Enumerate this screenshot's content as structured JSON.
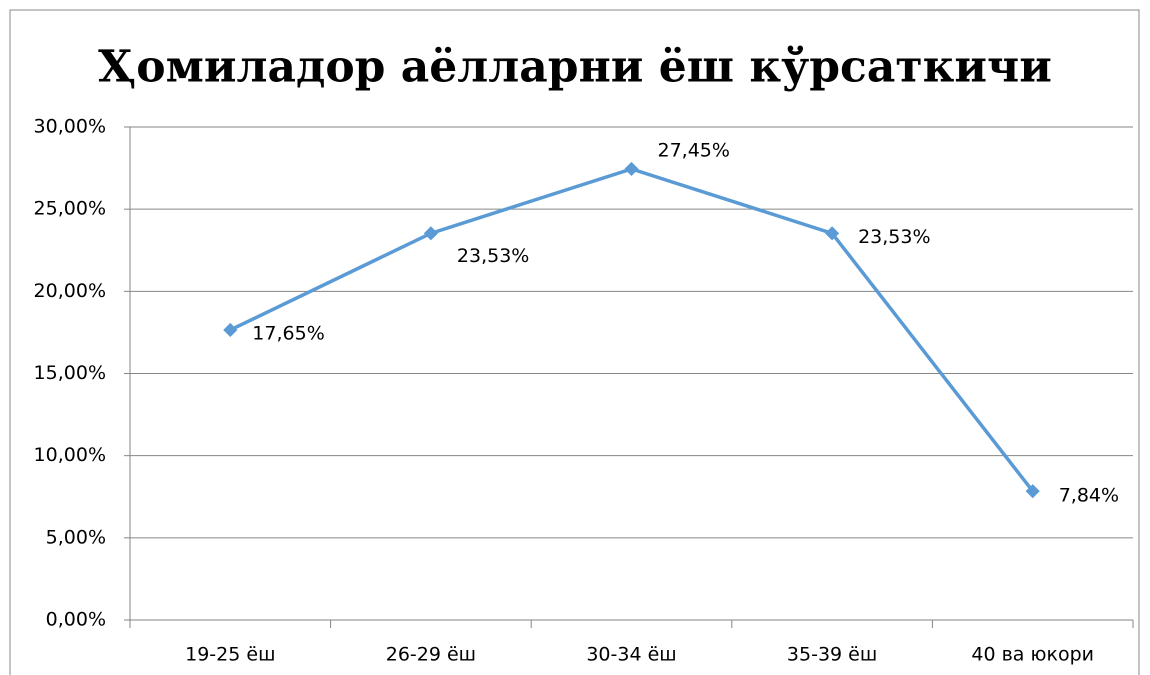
{
  "chart_data": {
    "type": "line",
    "title": "Ҳомиладор аёлларни ёш кўрсаткичи",
    "categories": [
      "19-25 ёш",
      "26-29 ёш",
      "30-34 ёш",
      "35-39 ёш",
      "40 ва юкори"
    ],
    "series": [
      {
        "name": "Ҳомиладор аёлларни ёш кўрсаткичи",
        "color": "#5b9bd5",
        "values": [
          17.65,
          23.53,
          27.45,
          23.53,
          7.84
        ],
        "value_labels": [
          "17,65%",
          "23,53%",
          "27,45%",
          "23,53%",
          "7,84%"
        ]
      }
    ],
    "ylim": [
      0,
      30
    ],
    "yticks": [
      {
        "value": 0,
        "label": "0,00%"
      },
      {
        "value": 5,
        "label": "5,00%"
      },
      {
        "value": 10,
        "label": "10,00%"
      },
      {
        "value": 15,
        "label": "15,00%"
      },
      {
        "value": 20,
        "label": "20,00%"
      },
      {
        "value": 25,
        "label": "25,00%"
      },
      {
        "value": 30,
        "label": "30,00%"
      }
    ],
    "grid": true
  }
}
